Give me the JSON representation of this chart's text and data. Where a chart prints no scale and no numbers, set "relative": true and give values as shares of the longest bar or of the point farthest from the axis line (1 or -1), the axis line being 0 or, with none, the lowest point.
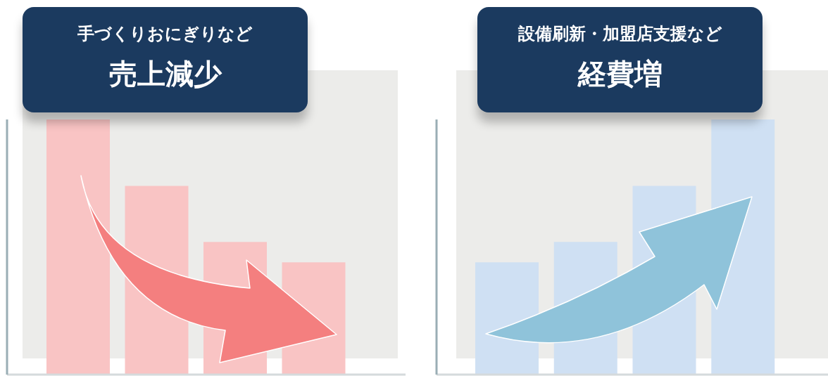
{
  "chart_data": [
    {
      "type": "bar",
      "title": "売上減少",
      "subtitle": "手づくりおにぎりなど",
      "categories": [
        null,
        null,
        null,
        null
      ],
      "values": [
        1,
        0.74,
        0.52,
        0.44
      ],
      "color": "#f9c4c4",
      "relative": true
    },
    {
      "type": "bar",
      "title": "経費増",
      "subtitle": "設備刷新・加盟店支援など",
      "categories": [
        null,
        null,
        null,
        null
      ],
      "values": [
        0.44,
        0.52,
        0.74,
        1
      ],
      "color": "#cfe0f3",
      "relative": true
    }
  ]
}
